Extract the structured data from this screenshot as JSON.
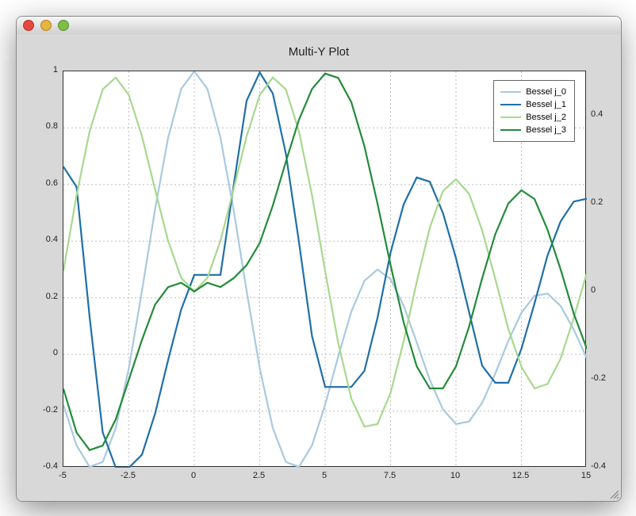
{
  "window": {
    "traffic_lights": {
      "close": "#e8493f",
      "min": "#e7b43c",
      "zoom": "#7dbf44"
    }
  },
  "chart": {
    "type": "line",
    "title": "Multi-Y Plot",
    "title_fontsize": 15,
    "background_color": "#d8d8d8",
    "plot_background": "#ffffff",
    "axis_color": "#333333",
    "grid_color": "#bfbfbf",
    "grid_dash": "2 3",
    "line_width": 2.2,
    "tick_fontsize": 11,
    "x_axis": {
      "lim": [
        -5,
        15
      ],
      "ticks": [
        -5,
        -2.5,
        0,
        2.5,
        5,
        7.5,
        10,
        12.5,
        15
      ],
      "labels": [
        "-5",
        "-2.5",
        "0",
        "2.5",
        "5",
        "7.5",
        "10",
        "12.5",
        "15"
      ]
    },
    "y_left": {
      "lim": [
        -0.4,
        1.0
      ],
      "ticks": [
        -0.4,
        -0.2,
        0,
        0.2,
        0.4,
        0.6,
        0.8,
        1.0
      ],
      "labels": [
        "-0.4",
        "-0.2",
        "0",
        "0.2",
        "0.4",
        "0.6",
        "0.8",
        "1"
      ]
    },
    "y_right": {
      "lim": [
        -0.4,
        0.5
      ],
      "ticks": [
        -0.4,
        -0.2,
        0,
        0.2,
        0.4
      ],
      "labels": [
        "-0.4",
        "-0.2",
        "0",
        "0.2",
        "0.4"
      ]
    },
    "legend": {
      "position": "top-right",
      "items": [
        {
          "label": "Bessel j_0",
          "color": "#a8c9e0"
        },
        {
          "label": "Bessel j_1",
          "color": "#1f6fa8"
        },
        {
          "label": "Bessel j_2",
          "color": "#a8d88f"
        },
        {
          "label": "Bessel j_3",
          "color": "#238b3a"
        }
      ]
    },
    "series": [
      {
        "name": "Bessel j_0",
        "axis": "left",
        "color": "#a8c9e0",
        "x": [
          -5,
          -4.5,
          -4,
          -3.5,
          -3,
          -2.5,
          -2,
          -1.5,
          -1,
          -0.5,
          0,
          0.5,
          1,
          1.5,
          2,
          2.5,
          3,
          3.5,
          4,
          4.5,
          5,
          5.5,
          6,
          6.5,
          7,
          7.5,
          8,
          8.5,
          9,
          9.5,
          10,
          10.5,
          11,
          11.5,
          12,
          12.5,
          13,
          13.5,
          14,
          14.5,
          15
        ],
        "y": [
          -0.178,
          -0.321,
          -0.397,
          -0.38,
          -0.26,
          -0.048,
          0.224,
          0.512,
          0.765,
          0.938,
          1.0,
          0.938,
          0.765,
          0.512,
          0.224,
          -0.048,
          -0.26,
          -0.38,
          -0.397,
          -0.321,
          -0.178,
          -0.007,
          0.151,
          0.26,
          0.3,
          0.266,
          0.172,
          0.042,
          -0.09,
          -0.194,
          -0.246,
          -0.237,
          -0.171,
          -0.068,
          0.048,
          0.147,
          0.207,
          0.215,
          0.171,
          0.088,
          -0.014
        ]
      },
      {
        "name": "Bessel j_1",
        "axis": "left",
        "color": "#1f6fa8",
        "x": [
          -5,
          -4.5,
          -4,
          -3.5,
          -3,
          -2.5,
          -2,
          -1.5,
          -1,
          -0.5,
          0,
          0.5,
          1,
          1.5,
          2,
          2.5,
          3,
          3.5,
          4,
          4.5,
          5,
          5.5,
          6,
          6.5,
          7,
          7.5,
          8,
          8.5,
          9,
          9.5,
          10,
          10.5,
          11,
          11.5,
          12,
          12.5,
          13,
          13.5,
          14,
          14.5,
          15
        ],
        "y": [
          0.663,
          0.592,
          0.132,
          -0.275,
          -0.4,
          -0.4,
          -0.354,
          -0.21,
          -0.02,
          0.159,
          0.281,
          0.281,
          0.281,
          0.595,
          0.896,
          0.996,
          0.922,
          0.709,
          0.397,
          0.064,
          -0.115,
          -0.115,
          -0.115,
          -0.058,
          0.129,
          0.36,
          0.53,
          0.625,
          0.61,
          0.5,
          0.34,
          0.15,
          -0.04,
          -0.1,
          -0.1,
          0.02,
          0.18,
          0.35,
          0.47,
          0.54,
          0.55
        ]
      },
      {
        "name": "Bessel j_2",
        "axis": "right",
        "color": "#a8d88f",
        "x": [
          -5,
          -4.5,
          -4,
          -3.5,
          -3,
          -2.5,
          -2,
          -1.5,
          -1,
          -0.5,
          0,
          0.5,
          1,
          1.5,
          2,
          2.5,
          3,
          3.5,
          4,
          4.5,
          5,
          5.5,
          6,
          6.5,
          7,
          7.5,
          8,
          8.5,
          9,
          9.5,
          10,
          10.5,
          11,
          11.5,
          12,
          12.5,
          13,
          13.5,
          14,
          14.5,
          15
        ],
        "y": [
          0.047,
          0.218,
          0.364,
          0.459,
          0.486,
          0.446,
          0.353,
          0.232,
          0.115,
          0.031,
          0.0,
          0.031,
          0.115,
          0.232,
          0.353,
          0.446,
          0.486,
          0.459,
          0.364,
          0.218,
          0.047,
          -0.117,
          -0.243,
          -0.307,
          -0.301,
          -0.23,
          -0.113,
          0.022,
          0.145,
          0.228,
          0.255,
          0.222,
          0.139,
          0.029,
          -0.085,
          -0.171,
          -0.22,
          -0.21,
          -0.152,
          -0.06,
          0.042
        ]
      },
      {
        "name": "Bessel j_3",
        "axis": "right",
        "color": "#238b3a",
        "x": [
          -5,
          -4.5,
          -4,
          -3.5,
          -3,
          -2.5,
          -2,
          -1.5,
          -1,
          -0.5,
          0,
          0.5,
          1,
          1.5,
          2,
          2.5,
          3,
          3.5,
          4,
          4.5,
          5,
          5.5,
          6,
          6.5,
          7,
          7.5,
          8,
          8.5,
          9,
          9.5,
          10,
          10.5,
          11,
          11.5,
          12,
          12.5,
          13,
          13.5,
          14,
          14.5,
          15
        ],
        "y": [
          -0.221,
          -0.32,
          -0.36,
          -0.35,
          -0.29,
          -0.2,
          -0.11,
          -0.03,
          0.01,
          0.02,
          0.0,
          0.02,
          0.01,
          0.03,
          0.06,
          0.11,
          0.195,
          0.295,
          0.39,
          0.46,
          0.495,
          0.485,
          0.43,
          0.33,
          0.2,
          0.06,
          -0.07,
          -0.17,
          -0.22,
          -0.22,
          -0.17,
          -0.08,
          0.03,
          0.13,
          0.2,
          0.23,
          0.21,
          0.14,
          0.05,
          -0.05,
          -0.13
        ]
      }
    ]
  }
}
